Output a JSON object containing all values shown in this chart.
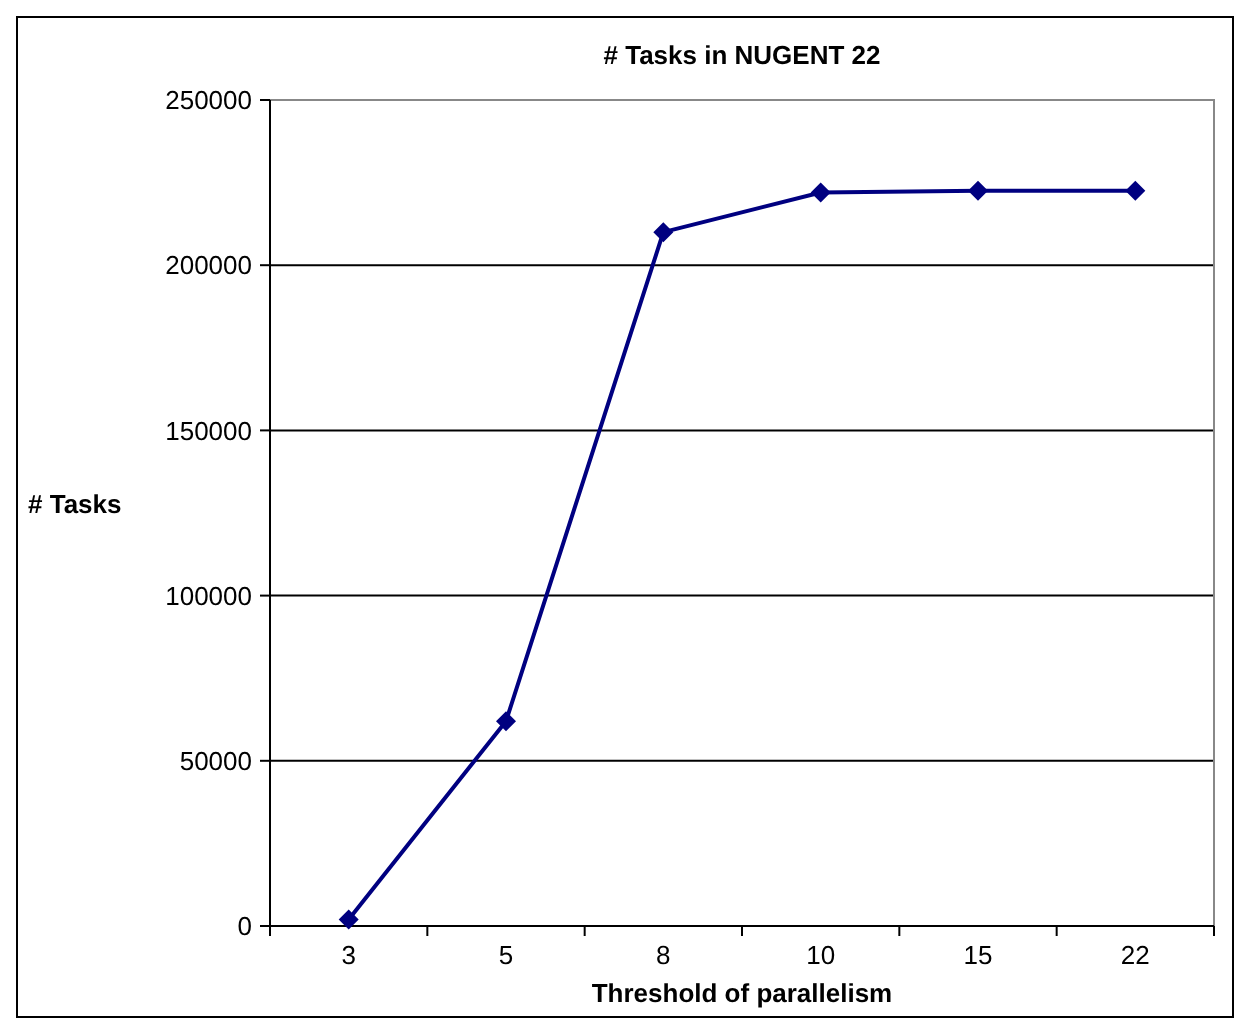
{
  "chart_data": {
    "type": "line",
    "title": "# Tasks in NUGENT 22",
    "xlabel": "Threshold of parallelism",
    "ylabel": "# Tasks",
    "categories": [
      "3",
      "5",
      "8",
      "10",
      "15",
      "22"
    ],
    "series": [
      {
        "color": "#000080",
        "values": [
          2000,
          62000,
          210000,
          222000,
          222500,
          222500
        ]
      }
    ],
    "ylim": [
      0,
      250000
    ],
    "yticks": [
      0,
      50000,
      100000,
      150000,
      200000,
      250000
    ],
    "grid": "y",
    "marker": "diamond",
    "line_style": "solid"
  }
}
